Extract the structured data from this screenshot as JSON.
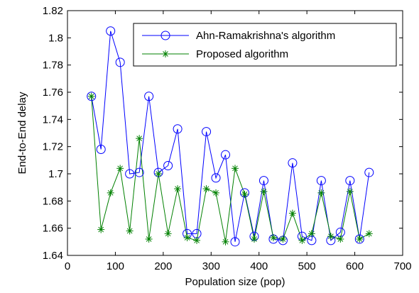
{
  "chart_data": {
    "type": "line",
    "title": "",
    "xlabel": "Population size (pop)",
    "ylabel": "End-to-End delay",
    "xlim": [
      0,
      700
    ],
    "ylim": [
      1.64,
      1.82
    ],
    "xticks": [
      0,
      100,
      200,
      300,
      400,
      500,
      600,
      700
    ],
    "yticks": [
      1.64,
      1.66,
      1.68,
      1.7,
      1.72,
      1.74,
      1.76,
      1.78,
      1.8,
      1.82
    ],
    "xtick_labels": [
      "0",
      "100",
      "200",
      "300",
      "400",
      "500",
      "600",
      "700"
    ],
    "ytick_labels": [
      "1.64",
      "1.66",
      "1.68",
      "1.7",
      "1.72",
      "1.74",
      "1.76",
      "1.78",
      "1.8",
      "1.82"
    ],
    "grid": false,
    "legend_position": "top-right",
    "x": [
      50,
      70,
      90,
      110,
      130,
      150,
      170,
      190,
      210,
      230,
      250,
      270,
      290,
      310,
      330,
      350,
      370,
      390,
      410,
      430,
      450,
      470,
      490,
      510,
      530,
      550,
      570,
      590,
      610,
      630
    ],
    "series": [
      {
        "name": "Ahn-Ramakrishna's algorithm",
        "color": "#0000ff",
        "marker": "circle",
        "values": [
          1.757,
          1.718,
          1.805,
          1.782,
          1.7,
          1.701,
          1.757,
          1.701,
          1.706,
          1.733,
          1.656,
          1.656,
          1.731,
          1.697,
          1.714,
          1.65,
          1.686,
          1.654,
          1.695,
          1.652,
          1.651,
          1.708,
          1.654,
          1.651,
          1.695,
          1.651,
          1.657,
          1.695,
          1.652,
          1.701
        ]
      },
      {
        "name": "Proposed algorithm",
        "color": "#008000",
        "marker": "star",
        "values": [
          1.757,
          1.659,
          1.686,
          1.704,
          1.658,
          1.726,
          1.652,
          1.7,
          1.656,
          1.689,
          1.653,
          1.651,
          1.689,
          1.686,
          1.65,
          1.704,
          1.685,
          1.652,
          1.687,
          1.653,
          1.652,
          1.671,
          1.651,
          1.656,
          1.686,
          1.654,
          1.652,
          1.687,
          1.652,
          1.656
        ]
      }
    ]
  }
}
